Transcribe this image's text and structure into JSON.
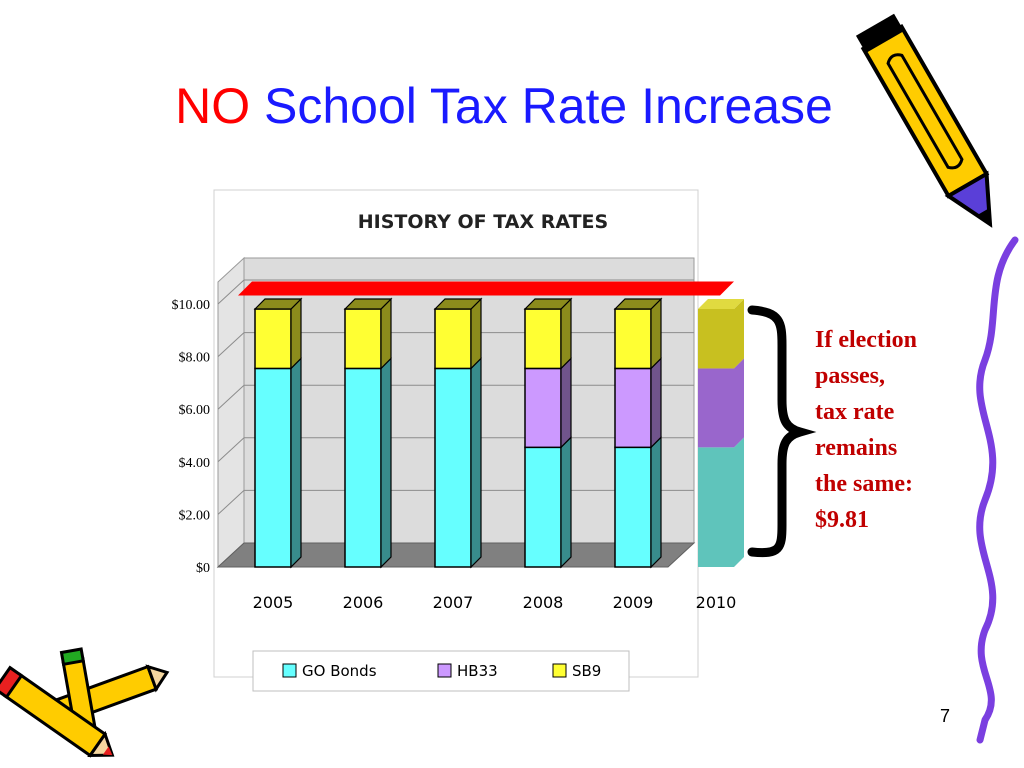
{
  "slide": {
    "title_part1": "NO",
    "title_part2": "School Tax Rate Increase",
    "title_color_part1": "#ff0000",
    "title_color_part2": "#1a1aff",
    "annotation_lines": [
      "If election",
      "passes,",
      "tax rate",
      "remains",
      "the same:",
      "$9.81"
    ],
    "annotation_color": "#c00000",
    "page_number": "7",
    "decorations": [
      "pencil-icon",
      "crayons-icon",
      "wavy-line"
    ]
  },
  "chart_data": {
    "type": "bar",
    "stacked": true,
    "title": "HISTORY OF TAX RATES",
    "categories": [
      "2005",
      "2006",
      "2007",
      "2008",
      "2009",
      "2010"
    ],
    "series": [
      {
        "name": "GO Bonds",
        "values": [
          7.55,
          7.55,
          7.55,
          4.55,
          4.55,
          4.55
        ],
        "color": "#66ffff",
        "color_2010": "#5fc4bb"
      },
      {
        "name": "HB33",
        "values": [
          0,
          0,
          0,
          3.0,
          3.0,
          3.0
        ],
        "color": "#cc99ff",
        "color_2010": "#9966cc"
      },
      {
        "name": "SB9",
        "values": [
          2.26,
          2.26,
          2.26,
          2.26,
          2.26,
          2.26
        ],
        "color": "#ffff33",
        "color_2010": "#c8c020"
      }
    ],
    "reference_line": {
      "value": 10.4,
      "color": "#ff0000"
    },
    "ylim": [
      0,
      10
    ],
    "yticks": [
      "$0",
      "$2.00",
      "$4.00",
      "$6.00",
      "$8.00",
      "$10.00"
    ],
    "ytick_values": [
      0,
      2,
      4,
      6,
      8,
      10
    ],
    "xlabel": "",
    "ylabel": "",
    "grid": true,
    "legend_position": "bottom"
  }
}
